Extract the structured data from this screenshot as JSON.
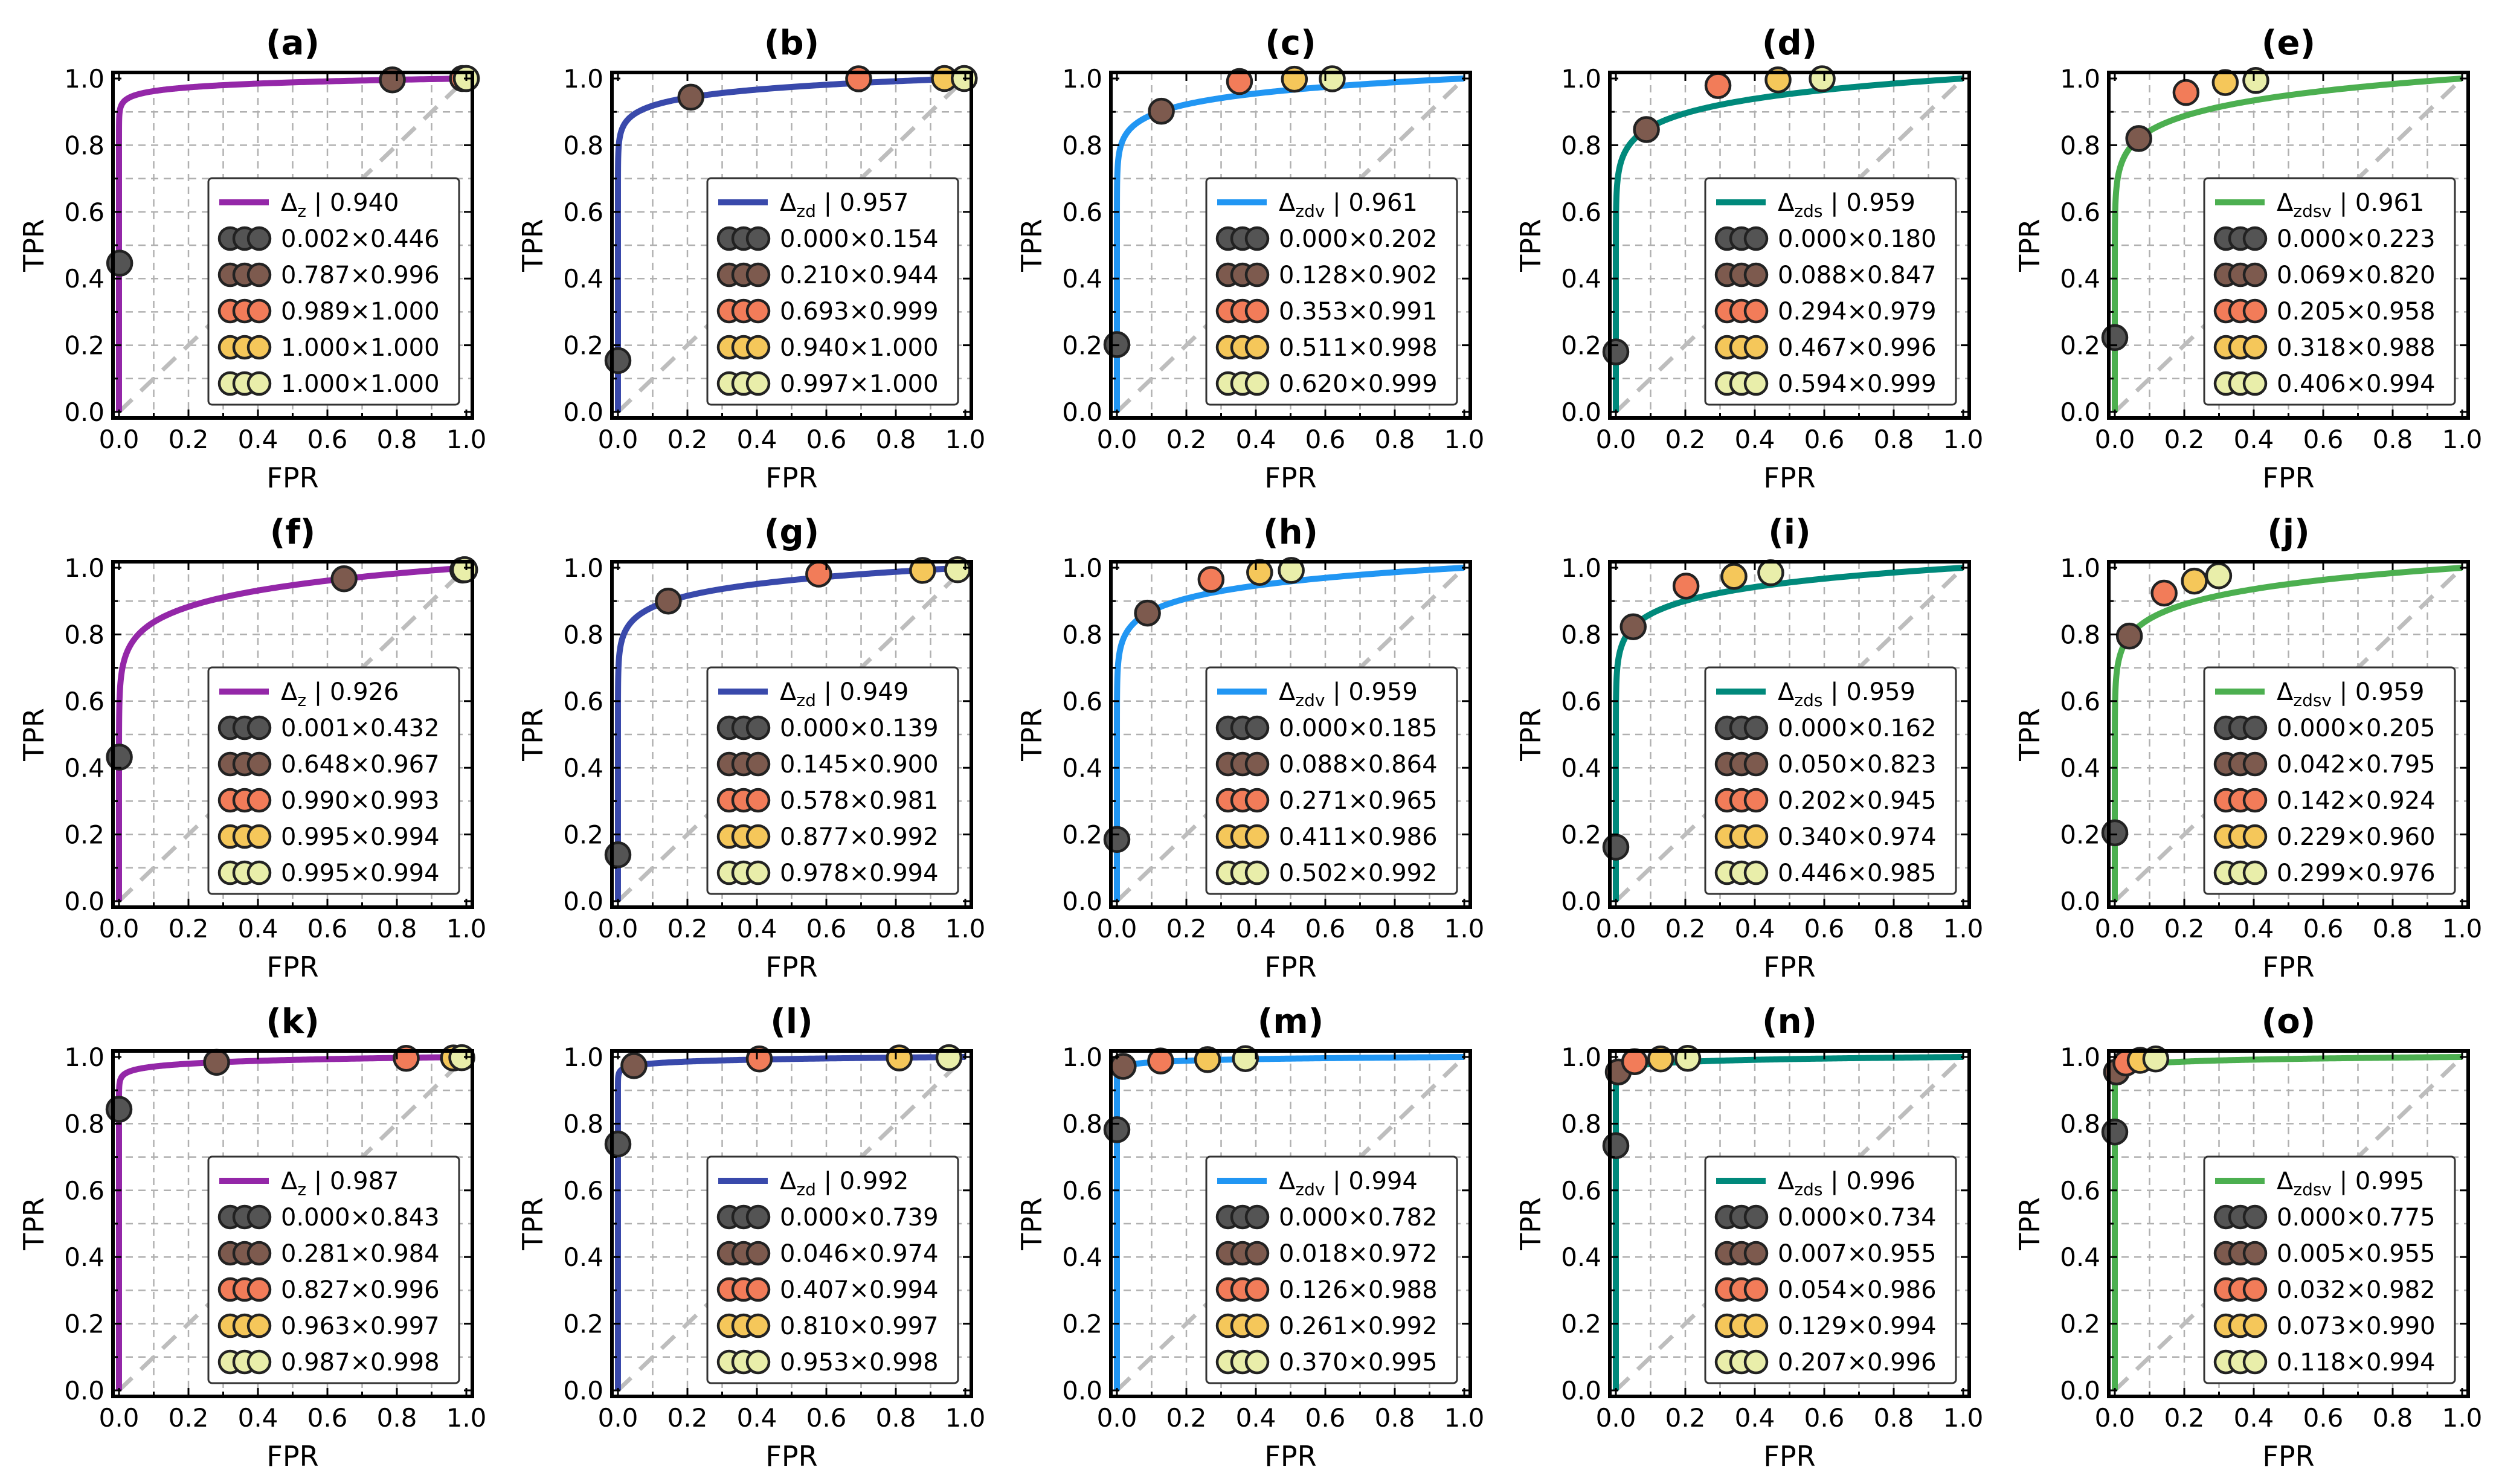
{
  "figure": {
    "ticks": [
      "0.0",
      "0.2",
      "0.4",
      "0.6",
      "0.8",
      "1.0"
    ],
    "xlabel": "FPR",
    "ylabel": "TPR",
    "delta_symbol": "Δ",
    "point_colors": [
      "#545454",
      "#7d5a4e",
      "#f27c59",
      "#f5c75a",
      "#e9eeaa"
    ]
  },
  "chart_data": [
    {
      "type": "line",
      "title": "(a)",
      "xlabel": "FPR",
      "ylabel": "TPR",
      "xlim": [
        0,
        1
      ],
      "ylim": [
        0,
        1
      ],
      "legend_position": "lower-right",
      "series_name": "z",
      "color": "#9427a8",
      "auc": "0.940",
      "thresholds": [
        {
          "fpr": 0.002,
          "tpr": 0.446,
          "label": "0.002×0.446"
        },
        {
          "fpr": 0.787,
          "tpr": 0.996,
          "label": "0.787×0.996"
        },
        {
          "fpr": 0.989,
          "tpr": 1.0,
          "label": "0.989×1.000"
        },
        {
          "fpr": 1.0,
          "tpr": 1.0,
          "label": "1.000×1.000"
        },
        {
          "fpr": 1.0,
          "tpr": 1.0,
          "label": "1.000×1.000"
        }
      ]
    },
    {
      "type": "line",
      "title": "(b)",
      "xlabel": "FPR",
      "ylabel": "TPR",
      "xlim": [
        0,
        1
      ],
      "ylim": [
        0,
        1
      ],
      "legend_position": "lower-right",
      "series_name": "zd",
      "color": "#3949ab",
      "auc": "0.957",
      "thresholds": [
        {
          "fpr": 0.0,
          "tpr": 0.154,
          "label": "0.000×0.154"
        },
        {
          "fpr": 0.21,
          "tpr": 0.944,
          "label": "0.210×0.944"
        },
        {
          "fpr": 0.693,
          "tpr": 0.999,
          "label": "0.693×0.999"
        },
        {
          "fpr": 0.94,
          "tpr": 1.0,
          "label": "0.940×1.000"
        },
        {
          "fpr": 0.997,
          "tpr": 1.0,
          "label": "0.997×1.000"
        }
      ]
    },
    {
      "type": "line",
      "title": "(c)",
      "xlabel": "FPR",
      "ylabel": "TPR",
      "xlim": [
        0,
        1
      ],
      "ylim": [
        0,
        1
      ],
      "legend_position": "lower-right",
      "series_name": "zdv",
      "color": "#2196f3",
      "auc": "0.961",
      "thresholds": [
        {
          "fpr": 0.0,
          "tpr": 0.202,
          "label": "0.000×0.202"
        },
        {
          "fpr": 0.128,
          "tpr": 0.902,
          "label": "0.128×0.902"
        },
        {
          "fpr": 0.353,
          "tpr": 0.991,
          "label": "0.353×0.991"
        },
        {
          "fpr": 0.511,
          "tpr": 0.998,
          "label": "0.511×0.998"
        },
        {
          "fpr": 0.62,
          "tpr": 0.999,
          "label": "0.620×0.999"
        }
      ]
    },
    {
      "type": "line",
      "title": "(d)",
      "xlabel": "FPR",
      "ylabel": "TPR",
      "xlim": [
        0,
        1
      ],
      "ylim": [
        0,
        1
      ],
      "legend_position": "lower-right",
      "series_name": "zds",
      "color": "#00897b",
      "auc": "0.959",
      "thresholds": [
        {
          "fpr": 0.0,
          "tpr": 0.18,
          "label": "0.000×0.180"
        },
        {
          "fpr": 0.088,
          "tpr": 0.847,
          "label": "0.088×0.847"
        },
        {
          "fpr": 0.294,
          "tpr": 0.979,
          "label": "0.294×0.979"
        },
        {
          "fpr": 0.467,
          "tpr": 0.996,
          "label": "0.467×0.996"
        },
        {
          "fpr": 0.594,
          "tpr": 0.999,
          "label": "0.594×0.999"
        }
      ]
    },
    {
      "type": "line",
      "title": "(e)",
      "xlabel": "FPR",
      "ylabel": "TPR",
      "xlim": [
        0,
        1
      ],
      "ylim": [
        0,
        1
      ],
      "legend_position": "lower-right",
      "series_name": "zdsv",
      "color": "#4caf50",
      "auc": "0.961",
      "thresholds": [
        {
          "fpr": 0.0,
          "tpr": 0.223,
          "label": "0.000×0.223"
        },
        {
          "fpr": 0.069,
          "tpr": 0.82,
          "label": "0.069×0.820"
        },
        {
          "fpr": 0.205,
          "tpr": 0.958,
          "label": "0.205×0.958"
        },
        {
          "fpr": 0.318,
          "tpr": 0.988,
          "label": "0.318×0.988"
        },
        {
          "fpr": 0.406,
          "tpr": 0.994,
          "label": "0.406×0.994"
        }
      ]
    },
    {
      "type": "line",
      "title": "(f)",
      "xlabel": "FPR",
      "ylabel": "TPR",
      "xlim": [
        0,
        1
      ],
      "ylim": [
        0,
        1
      ],
      "legend_position": "lower-right",
      "series_name": "z",
      "color": "#9427a8",
      "auc": "0.926",
      "thresholds": [
        {
          "fpr": 0.001,
          "tpr": 0.432,
          "label": "0.001×0.432"
        },
        {
          "fpr": 0.648,
          "tpr": 0.967,
          "label": "0.648×0.967"
        },
        {
          "fpr": 0.99,
          "tpr": 0.993,
          "label": "0.990×0.993"
        },
        {
          "fpr": 0.995,
          "tpr": 0.994,
          "label": "0.995×0.994"
        },
        {
          "fpr": 0.995,
          "tpr": 0.994,
          "label": "0.995×0.994"
        }
      ]
    },
    {
      "type": "line",
      "title": "(g)",
      "xlabel": "FPR",
      "ylabel": "TPR",
      "xlim": [
        0,
        1
      ],
      "ylim": [
        0,
        1
      ],
      "legend_position": "lower-right",
      "series_name": "zd",
      "color": "#3949ab",
      "auc": "0.949",
      "thresholds": [
        {
          "fpr": 0.0,
          "tpr": 0.139,
          "label": "0.000×0.139"
        },
        {
          "fpr": 0.145,
          "tpr": 0.9,
          "label": "0.145×0.900"
        },
        {
          "fpr": 0.578,
          "tpr": 0.981,
          "label": "0.578×0.981"
        },
        {
          "fpr": 0.877,
          "tpr": 0.992,
          "label": "0.877×0.992"
        },
        {
          "fpr": 0.978,
          "tpr": 0.994,
          "label": "0.978×0.994"
        }
      ]
    },
    {
      "type": "line",
      "title": "(h)",
      "xlabel": "FPR",
      "ylabel": "TPR",
      "xlim": [
        0,
        1
      ],
      "ylim": [
        0,
        1
      ],
      "legend_position": "lower-right",
      "series_name": "zdv",
      "color": "#2196f3",
      "auc": "0.959",
      "thresholds": [
        {
          "fpr": 0.0,
          "tpr": 0.185,
          "label": "0.000×0.185"
        },
        {
          "fpr": 0.088,
          "tpr": 0.864,
          "label": "0.088×0.864"
        },
        {
          "fpr": 0.271,
          "tpr": 0.965,
          "label": "0.271×0.965"
        },
        {
          "fpr": 0.411,
          "tpr": 0.986,
          "label": "0.411×0.986"
        },
        {
          "fpr": 0.502,
          "tpr": 0.992,
          "label": "0.502×0.992"
        }
      ]
    },
    {
      "type": "line",
      "title": "(i)",
      "xlabel": "FPR",
      "ylabel": "TPR",
      "xlim": [
        0,
        1
      ],
      "ylim": [
        0,
        1
      ],
      "legend_position": "lower-right",
      "series_name": "zds",
      "color": "#00897b",
      "auc": "0.959",
      "thresholds": [
        {
          "fpr": 0.0,
          "tpr": 0.162,
          "label": "0.000×0.162"
        },
        {
          "fpr": 0.05,
          "tpr": 0.823,
          "label": "0.050×0.823"
        },
        {
          "fpr": 0.202,
          "tpr": 0.945,
          "label": "0.202×0.945"
        },
        {
          "fpr": 0.34,
          "tpr": 0.974,
          "label": "0.340×0.974"
        },
        {
          "fpr": 0.446,
          "tpr": 0.985,
          "label": "0.446×0.985"
        }
      ]
    },
    {
      "type": "line",
      "title": "(j)",
      "xlabel": "FPR",
      "ylabel": "TPR",
      "xlim": [
        0,
        1
      ],
      "ylim": [
        0,
        1
      ],
      "legend_position": "lower-right",
      "series_name": "zdsv",
      "color": "#4caf50",
      "auc": "0.959",
      "thresholds": [
        {
          "fpr": 0.0,
          "tpr": 0.205,
          "label": "0.000×0.205"
        },
        {
          "fpr": 0.042,
          "tpr": 0.795,
          "label": "0.042×0.795"
        },
        {
          "fpr": 0.142,
          "tpr": 0.924,
          "label": "0.142×0.924"
        },
        {
          "fpr": 0.229,
          "tpr": 0.96,
          "label": "0.229×0.960"
        },
        {
          "fpr": 0.299,
          "tpr": 0.976,
          "label": "0.299×0.976"
        }
      ]
    },
    {
      "type": "line",
      "title": "(k)",
      "xlabel": "FPR",
      "ylabel": "TPR",
      "xlim": [
        0,
        1
      ],
      "ylim": [
        0,
        1
      ],
      "legend_position": "lower-right",
      "series_name": "z",
      "color": "#9427a8",
      "auc": "0.987",
      "thresholds": [
        {
          "fpr": 0.0,
          "tpr": 0.843,
          "label": "0.000×0.843"
        },
        {
          "fpr": 0.281,
          "tpr": 0.984,
          "label": "0.281×0.984"
        },
        {
          "fpr": 0.827,
          "tpr": 0.996,
          "label": "0.827×0.996"
        },
        {
          "fpr": 0.963,
          "tpr": 0.997,
          "label": "0.963×0.997"
        },
        {
          "fpr": 0.987,
          "tpr": 0.998,
          "label": "0.987×0.998"
        }
      ]
    },
    {
      "type": "line",
      "title": "(l)",
      "xlabel": "FPR",
      "ylabel": "TPR",
      "xlim": [
        0,
        1
      ],
      "ylim": [
        0,
        1
      ],
      "legend_position": "lower-right",
      "series_name": "zd",
      "color": "#3949ab",
      "auc": "0.992",
      "thresholds": [
        {
          "fpr": 0.0,
          "tpr": 0.739,
          "label": "0.000×0.739"
        },
        {
          "fpr": 0.046,
          "tpr": 0.974,
          "label": "0.046×0.974"
        },
        {
          "fpr": 0.407,
          "tpr": 0.994,
          "label": "0.407×0.994"
        },
        {
          "fpr": 0.81,
          "tpr": 0.997,
          "label": "0.810×0.997"
        },
        {
          "fpr": 0.953,
          "tpr": 0.998,
          "label": "0.953×0.998"
        }
      ]
    },
    {
      "type": "line",
      "title": "(m)",
      "xlabel": "FPR",
      "ylabel": "TPR",
      "xlim": [
        0,
        1
      ],
      "ylim": [
        0,
        1
      ],
      "legend_position": "lower-right",
      "series_name": "zdv",
      "color": "#2196f3",
      "auc": "0.994",
      "thresholds": [
        {
          "fpr": 0.0,
          "tpr": 0.782,
          "label": "0.000×0.782"
        },
        {
          "fpr": 0.018,
          "tpr": 0.972,
          "label": "0.018×0.972"
        },
        {
          "fpr": 0.126,
          "tpr": 0.988,
          "label": "0.126×0.988"
        },
        {
          "fpr": 0.261,
          "tpr": 0.992,
          "label": "0.261×0.992"
        },
        {
          "fpr": 0.37,
          "tpr": 0.995,
          "label": "0.370×0.995"
        }
      ]
    },
    {
      "type": "line",
      "title": "(n)",
      "xlabel": "FPR",
      "ylabel": "TPR",
      "xlim": [
        0,
        1
      ],
      "ylim": [
        0,
        1
      ],
      "legend_position": "lower-right",
      "series_name": "zds",
      "color": "#00897b",
      "auc": "0.996",
      "thresholds": [
        {
          "fpr": 0.0,
          "tpr": 0.734,
          "label": "0.000×0.734"
        },
        {
          "fpr": 0.007,
          "tpr": 0.955,
          "label": "0.007×0.955"
        },
        {
          "fpr": 0.054,
          "tpr": 0.986,
          "label": "0.054×0.986"
        },
        {
          "fpr": 0.129,
          "tpr": 0.994,
          "label": "0.129×0.994"
        },
        {
          "fpr": 0.207,
          "tpr": 0.996,
          "label": "0.207×0.996"
        }
      ]
    },
    {
      "type": "line",
      "title": "(o)",
      "xlabel": "FPR",
      "ylabel": "TPR",
      "xlim": [
        0,
        1
      ],
      "ylim": [
        0,
        1
      ],
      "legend_position": "lower-right",
      "series_name": "zdsv",
      "color": "#4caf50",
      "auc": "0.995",
      "thresholds": [
        {
          "fpr": 0.0,
          "tpr": 0.775,
          "label": "0.000×0.775"
        },
        {
          "fpr": 0.005,
          "tpr": 0.955,
          "label": "0.005×0.955"
        },
        {
          "fpr": 0.032,
          "tpr": 0.982,
          "label": "0.032×0.982"
        },
        {
          "fpr": 0.073,
          "tpr": 0.99,
          "label": "0.073×0.990"
        },
        {
          "fpr": 0.118,
          "tpr": 0.994,
          "label": "0.118×0.994"
        }
      ]
    }
  ]
}
